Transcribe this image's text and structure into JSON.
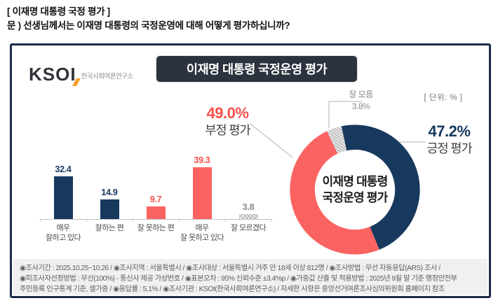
{
  "page": {
    "heading1": "[ 이재명 대통령 국정 평가 ]",
    "heading2": "문 )   선생님께서는 이재명 대통령의 국정운영에 대해 어떻게 평가하십니까?"
  },
  "panel": {
    "logo_text": "KSOI",
    "logo_subtext": "한국사회여론연구소",
    "title": "이재명 대통령 국정운영 평가",
    "unit_label": "[ 단위: % ]"
  },
  "chart_data": [
    {
      "type": "bar",
      "title": "이재명 대통령 국정운영 평가",
      "unit": "%",
      "categories": [
        "매우 잘하고 있다",
        "잘하는 편",
        "잘 못하는 편",
        "매우 잘 못하고 있다",
        "잘 모르겠다"
      ],
      "categories_lines": [
        [
          "매우",
          "잘하고 있다"
        ],
        [
          "잘하는 편"
        ],
        [
          "잘 못하는 편"
        ],
        [
          "매우",
          "잘 못하고 있다"
        ],
        [
          "잘 모르겠다"
        ]
      ],
      "values": [
        32.4,
        14.9,
        9.7,
        39.3,
        3.8
      ],
      "colors": [
        "#17395e",
        "#17395e",
        "#fa6361",
        "#fa6361",
        "#c9c9c9"
      ],
      "value_label_colors": [
        "#17395e",
        "#17395e",
        "#f7504c",
        "#f7504c",
        "#8c8c8c"
      ],
      "pattern_index": 4,
      "ylim": [
        0,
        45
      ],
      "gridlines": false,
      "legend": "none"
    },
    {
      "type": "pie",
      "donut": true,
      "slices": [
        {
          "label": "긍정 평가",
          "value": 47.2,
          "display": "47.2%",
          "color": "#17395e"
        },
        {
          "label": "부정 평가",
          "value": 49.0,
          "display": "49.0%",
          "color": "#fa6361"
        },
        {
          "label": "잘 모름",
          "value": 3.8,
          "display": "3.8%",
          "color": "#c9c9c9",
          "pattern": "hatch"
        }
      ],
      "center_label_lines": [
        "이재명 대통령",
        "국정운영 평가"
      ],
      "start_rotation_deg": -102
    }
  ],
  "footer": {
    "lines": [
      "◉조사기간 : 2025.10.25~10.26 / ◉조사지역 : 서울특별시 / ◉조사대상 : 서울특별시 거주 만 18세 이상 812명 / ◉조사방법 : 무선 자동응답(ARS) 조사 /",
      "◉피조사자선정방법 : 무선(100%) - 통신사 제공 가상번호 / ◉표본오차 : 95% 신뢰수준 ±3.4%p / ◉가중값 산출 및 적용방법 : 2025년 9월 말 기준 행정안전부",
      "주민등록 인구통계 기준, 셀가중 / ◉응답률 : 5.1% / ◉조사기관 : KSOI(한국사회여론연구소) / 자세한 사항은 중앙선거여론조사심의위원회 홈페이지 참조"
    ]
  },
  "colors": {
    "navy": "#17395e",
    "coral": "#fa6361",
    "pattern_gray": "#c9c9c9",
    "badge_bg": "#2b333e",
    "panel_border": "#1b2a4a",
    "footer_bg": "#f0f0f1",
    "logo_accent": "#f5a02d"
  }
}
